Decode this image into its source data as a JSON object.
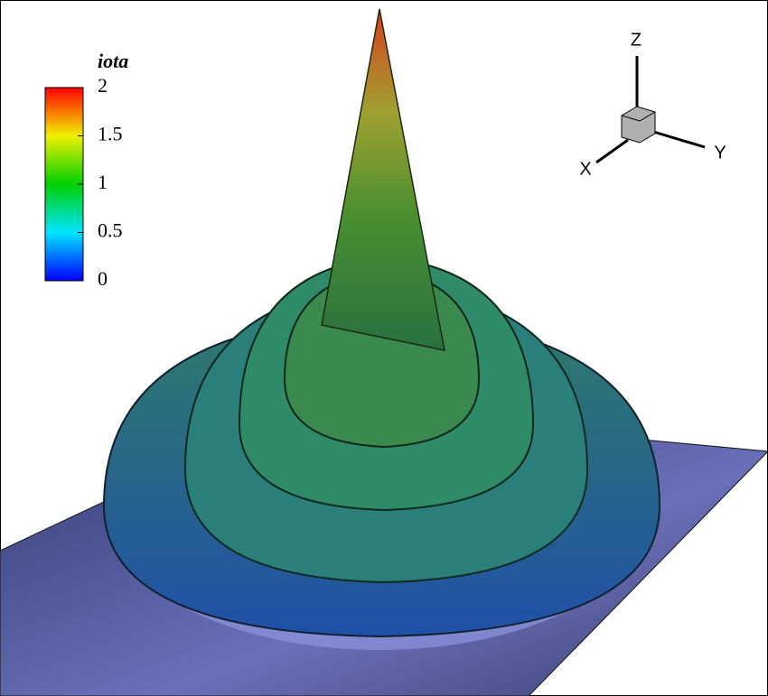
{
  "legend": {
    "title": "iota",
    "range": [
      0,
      2
    ],
    "ticks": [
      0,
      0.5,
      1,
      1.5,
      2
    ]
  },
  "axes_triad": {
    "z": "Z",
    "y": "Y",
    "x": "X"
  }
}
